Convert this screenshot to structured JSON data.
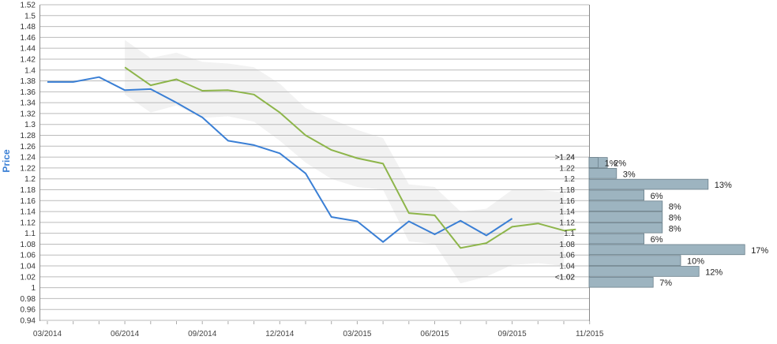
{
  "chart_data": {
    "type": "line",
    "ylabel": "Price",
    "ylim": [
      0.94,
      1.52
    ],
    "y_ticks": [
      "0.94",
      "0.96",
      "0.98",
      "1",
      "1.02",
      "1.04",
      "1.06",
      "1.08",
      "1.1",
      "1.12",
      "1.14",
      "1.16",
      "1.18",
      "1.2",
      "1.22",
      "1.24",
      "1.26",
      "1.28",
      "1.3",
      "1.32",
      "1.34",
      "1.36",
      "1.38",
      "1.4",
      "1.42",
      "1.44",
      "1.46",
      "1.48",
      "1.5",
      "1.52"
    ],
    "x_ticks": [
      "03/2014",
      "06/2014",
      "09/2014",
      "12/2014",
      "03/2015",
      "06/2015",
      "09/2015",
      "11/2015"
    ],
    "grid": true,
    "series": [
      {
        "color": "#3a7fd5",
        "points": [
          {
            "x": "2014-03",
            "y": 1.378
          },
          {
            "x": "2014-04",
            "y": 1.378
          },
          {
            "x": "2014-05",
            "y": 1.387
          },
          {
            "x": "2014-06",
            "y": 1.363
          },
          {
            "x": "2014-07",
            "y": 1.365
          },
          {
            "x": "2014-08",
            "y": 1.34
          },
          {
            "x": "2014-09",
            "y": 1.313
          },
          {
            "x": "2014-10",
            "y": 1.27
          },
          {
            "x": "2014-11",
            "y": 1.262
          },
          {
            "x": "2014-12",
            "y": 1.247
          },
          {
            "x": "2015-01",
            "y": 1.21
          },
          {
            "x": "2015-02",
            "y": 1.13
          },
          {
            "x": "2015-03",
            "y": 1.122
          },
          {
            "x": "2015-04",
            "y": 1.084
          },
          {
            "x": "2015-05",
            "y": 1.122
          },
          {
            "x": "2015-06",
            "y": 1.098
          },
          {
            "x": "2015-07",
            "y": 1.123
          },
          {
            "x": "2015-08",
            "y": 1.096
          },
          {
            "x": "2015-09",
            "y": 1.127
          }
        ]
      },
      {
        "color": "#8db54a",
        "points": [
          {
            "x": "2014-06",
            "y": 1.405
          },
          {
            "x": "2014-07",
            "y": 1.372
          },
          {
            "x": "2014-08",
            "y": 1.383
          },
          {
            "x": "2014-09",
            "y": 1.362
          },
          {
            "x": "2014-10",
            "y": 1.363
          },
          {
            "x": "2014-11",
            "y": 1.355
          },
          {
            "x": "2014-12",
            "y": 1.322
          },
          {
            "x": "2015-01",
            "y": 1.28
          },
          {
            "x": "2015-02",
            "y": 1.253
          },
          {
            "x": "2015-03",
            "y": 1.238
          },
          {
            "x": "2015-04",
            "y": 1.228
          },
          {
            "x": "2015-05",
            "y": 1.137
          },
          {
            "x": "2015-06",
            "y": 1.133
          },
          {
            "x": "2015-07",
            "y": 1.073
          },
          {
            "x": "2015-08",
            "y": 1.082
          },
          {
            "x": "2015-09",
            "y": 1.112
          },
          {
            "x": "2015-10",
            "y": 1.118
          },
          {
            "x": "2015-11",
            "y": 1.105
          },
          {
            "x": "2015-11-15",
            "y": 1.107
          }
        ]
      }
    ],
    "band": {
      "color": "#f2f2f2",
      "upper": [
        {
          "x": "2014-06",
          "y": 1.455
        },
        {
          "x": "2014-07",
          "y": 1.422
        },
        {
          "x": "2014-08",
          "y": 1.432
        },
        {
          "x": "2014-09",
          "y": 1.415
        },
        {
          "x": "2014-10",
          "y": 1.412
        },
        {
          "x": "2014-11",
          "y": 1.405
        },
        {
          "x": "2014-12",
          "y": 1.375
        },
        {
          "x": "2015-01",
          "y": 1.33
        },
        {
          "x": "2015-02",
          "y": 1.31
        },
        {
          "x": "2015-03",
          "y": 1.29
        },
        {
          "x": "2015-04",
          "y": 1.275
        },
        {
          "x": "2015-05",
          "y": 1.19
        },
        {
          "x": "2015-06",
          "y": 1.185
        },
        {
          "x": "2015-07",
          "y": 1.14
        },
        {
          "x": "2015-08",
          "y": 1.145
        },
        {
          "x": "2015-09",
          "y": 1.18
        },
        {
          "x": "2015-10",
          "y": 1.18
        },
        {
          "x": "2015-11",
          "y": 1.175
        }
      ],
      "lower": [
        {
          "x": "2014-06",
          "y": 1.355
        },
        {
          "x": "2014-07",
          "y": 1.322
        },
        {
          "x": "2014-08",
          "y": 1.335
        },
        {
          "x": "2014-09",
          "y": 1.312
        },
        {
          "x": "2014-10",
          "y": 1.315
        },
        {
          "x": "2014-11",
          "y": 1.305
        },
        {
          "x": "2014-12",
          "y": 1.27
        },
        {
          "x": "2015-01",
          "y": 1.23
        },
        {
          "x": "2015-02",
          "y": 1.2
        },
        {
          "x": "2015-03",
          "y": 1.185
        },
        {
          "x": "2015-04",
          "y": 1.18
        },
        {
          "x": "2015-05",
          "y": 1.085
        },
        {
          "x": "2015-06",
          "y": 1.08
        },
        {
          "x": "2015-07",
          "y": 1.008
        },
        {
          "x": "2015-08",
          "y": 1.02
        },
        {
          "x": "2015-09",
          "y": 1.042
        },
        {
          "x": "2015-10",
          "y": 1.045
        },
        {
          "x": "2015-11",
          "y": 1.04
        }
      ]
    },
    "distribution": {
      "color": "#9db4c0",
      "bins": [
        {
          "label": ">1.24",
          "value": 2,
          "pct_label": "2%"
        },
        {
          "label": "1.24",
          "value": 1,
          "pct_label": "1%"
        },
        {
          "label": "1.22",
          "value": 3,
          "pct_label": "3%"
        },
        {
          "label": "1.2",
          "value": 13,
          "pct_label": "13%"
        },
        {
          "label": "1.18",
          "value": 6,
          "pct_label": "6%"
        },
        {
          "label": "1.16",
          "value": 8,
          "pct_label": "8%"
        },
        {
          "label": "1.14",
          "value": 8,
          "pct_label": "8%"
        },
        {
          "label": "1.12",
          "value": 8,
          "pct_label": "8%"
        },
        {
          "label": "1.1",
          "value": 6,
          "pct_label": "6%"
        },
        {
          "label": "1.08",
          "value": 17,
          "pct_label": "17%"
        },
        {
          "label": "1.06",
          "value": 10,
          "pct_label": "10%"
        },
        {
          "label": "1.04",
          "value": 12,
          "pct_label": "12%"
        },
        {
          "label": "1.02",
          "value": 7,
          "pct_label": "7%"
        },
        {
          "label": "<1.02",
          "value": 0,
          "pct_label": ""
        }
      ]
    },
    "colors": {
      "ylabel": "#3a7fd5",
      "grid": "#bbbbbb",
      "axis": "#888888"
    }
  }
}
